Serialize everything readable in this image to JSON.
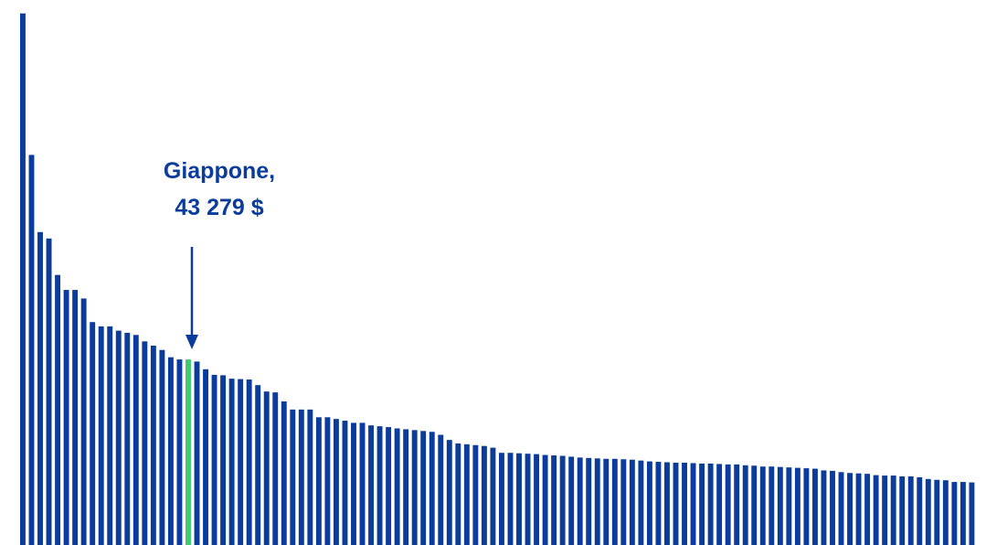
{
  "chart_data": {
    "type": "bar",
    "colors": {
      "bar": "#0B3C9B",
      "highlight": "#3DCB6B",
      "annotation": "#0B3C9B"
    },
    "values": [
      124000,
      91000,
      73000,
      71500,
      63000,
      59500,
      59500,
      57500,
      52000,
      51000,
      51000,
      50000,
      49500,
      49000,
      47500,
      46500,
      45500,
      43800,
      43279,
      43279,
      42800,
      41000,
      39700,
      39600,
      38800,
      38700,
      38600,
      37300,
      35800,
      35600,
      33500,
      31600,
      31600,
      31600,
      29800,
      29800,
      29400,
      29000,
      28500,
      28500,
      27900,
      27700,
      27500,
      27200,
      27000,
      26800,
      26600,
      26400,
      25700,
      24500,
      23700,
      23500,
      23300,
      23100,
      22700,
      21500,
      21500,
      21400,
      21300,
      21200,
      21000,
      20900,
      20800,
      20600,
      20400,
      20300,
      20200,
      20100,
      20100,
      20000,
      19900,
      19700,
      19500,
      19400,
      19300,
      19200,
      19200,
      19100,
      19000,
      19000,
      18900,
      18800,
      18800,
      18600,
      18500,
      18300,
      18300,
      18200,
      18100,
      18000,
      17900,
      17800,
      17400,
      17300,
      17000,
      16800,
      16700,
      16600,
      16300,
      16200,
      16200,
      16000,
      16000,
      15800,
      15400,
      15200,
      15100,
      14700,
      14700,
      14600
    ],
    "highlight_index": 19,
    "ylim": [
      0,
      125000
    ],
    "grid": false,
    "annotation": {
      "line1": "Giappone,",
      "line2": "43 279 $"
    }
  }
}
